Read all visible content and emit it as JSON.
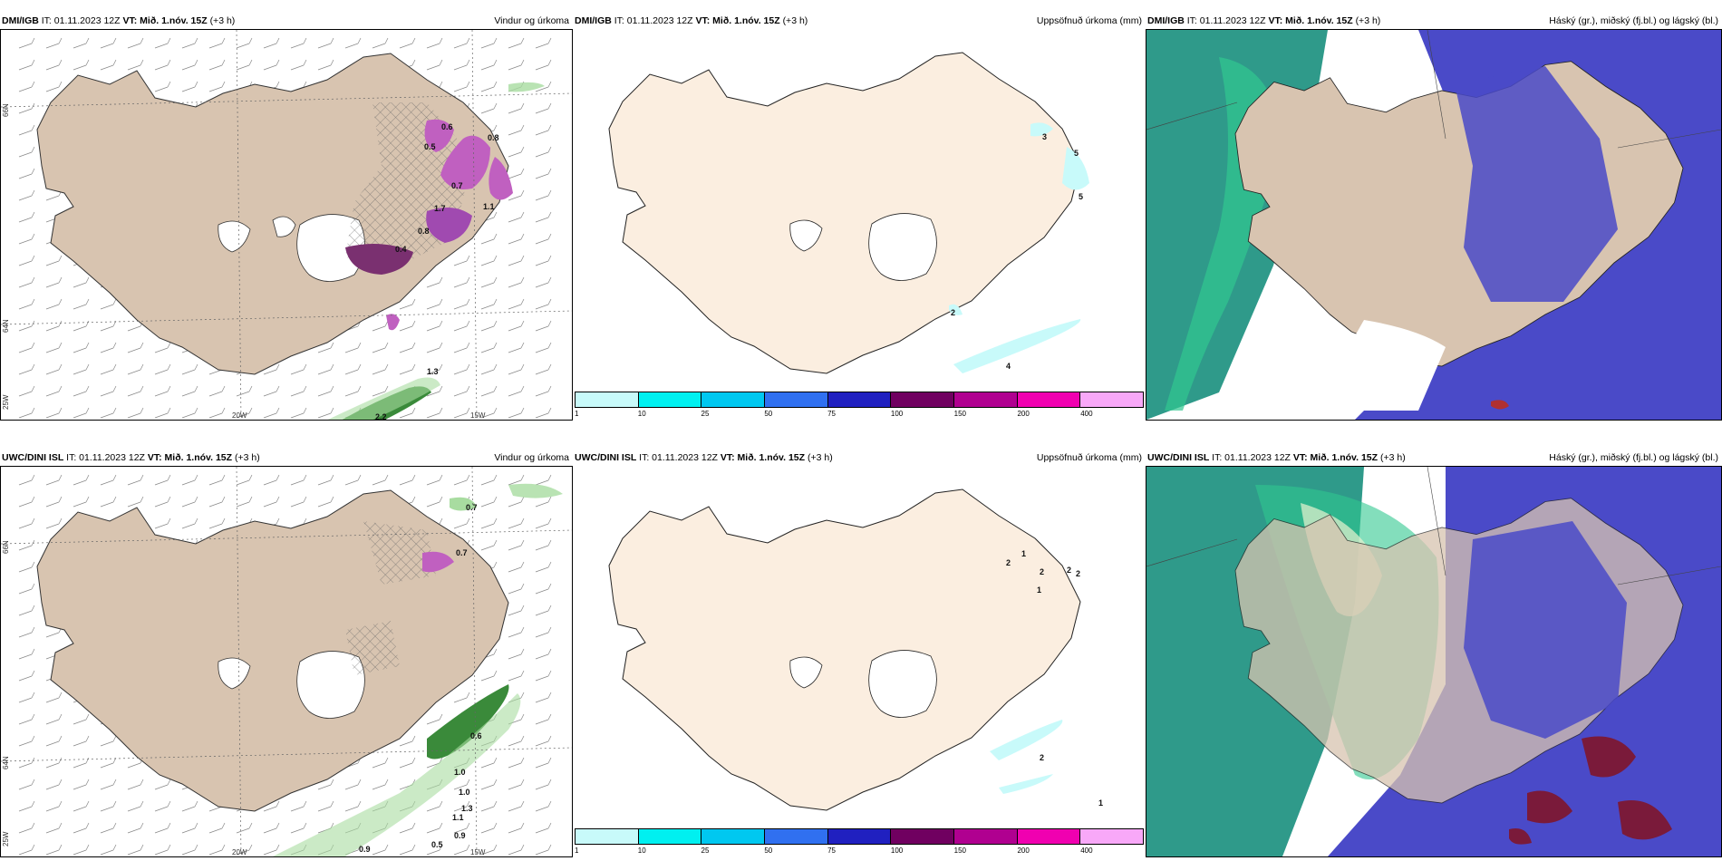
{
  "panels": [
    {
      "model": "DMI/IGB",
      "it": "IT: 01.11.2023 12Z",
      "vt": "VT: Mið. 1.nóv. 15Z",
      "lead": "(+3 h)",
      "title": "Vindur og úrkoma"
    },
    {
      "model": "DMI/IGB",
      "it": "IT: 01.11.2023 12Z",
      "vt": "VT: Mið. 1.nóv. 15Z",
      "lead": "(+3 h)",
      "title": "Uppsöfnuð úrkoma (mm)"
    },
    {
      "model": "DMI/IGB",
      "it": "IT: 01.11.2023 12Z",
      "vt": "VT: Mið. 1.nóv. 15Z",
      "lead": "(+3 h)",
      "title": "Háský (gr.), miðský (fj.bl.) og lágský (bl.)"
    },
    {
      "model": "UWC/DINI ISL",
      "it": "IT: 01.11.2023 12Z",
      "vt": "VT: Mið. 1.nóv. 15Z",
      "lead": "(+3 h)",
      "title": "Vindur og úrkoma"
    },
    {
      "model": "UWC/DINI ISL",
      "it": "IT: 01.11.2023 12Z",
      "vt": "VT: Mið. 1.nóv. 15Z",
      "lead": "(+3 h)",
      "title": "Uppsöfnuð úrkoma (mm)"
    },
    {
      "model": "UWC/DINI ISL",
      "it": "IT: 01.11.2023 12Z",
      "vt": "VT: Mið. 1.nóv. 15Z",
      "lead": "(+3 h)",
      "title": "Háský (gr.), miðský (fj.bl.) og lágský (bl.)"
    }
  ],
  "axes": {
    "lon1": "20W",
    "lon2": "15W",
    "lat1": "66N",
    "lat2": "64N",
    "lat3": "25W"
  },
  "precip_labels_top": [
    "0.8",
    "0.5",
    "0.6",
    "1.7",
    "1.1",
    "0.7",
    "0.4",
    "0.8",
    "2.2",
    "1.3"
  ],
  "precip_labels_bottom": [
    "0.7",
    "0.7",
    "0.6",
    "1.0",
    "1.0",
    "1.3",
    "1.1",
    "0.9",
    "0.5",
    "0.9"
  ],
  "accum_labels_top": [
    "3",
    "5",
    "5",
    "2",
    "4"
  ],
  "accum_labels_bottom": [
    "2",
    "1",
    "2",
    "2",
    "1",
    "2",
    "2",
    "1"
  ],
  "legend": {
    "labels": [
      "1",
      "10",
      "25",
      "50",
      "75",
      "100",
      "150",
      "200",
      "400"
    ],
    "colors": [
      "#c8fafa",
      "#00f0f0",
      "#00c8f0",
      "#3070f0",
      "#2020c0",
      "#700060",
      "#b00090",
      "#f000b0",
      "#f8a8f8"
    ]
  },
  "colors": {
    "land": "#d8c4b0",
    "land_light": "#fbeee0",
    "sea": "#ffffff",
    "cloud_high": "#2f9a8a",
    "cloud_mid": "#30c890",
    "cloud_low": "#4040c0"
  }
}
